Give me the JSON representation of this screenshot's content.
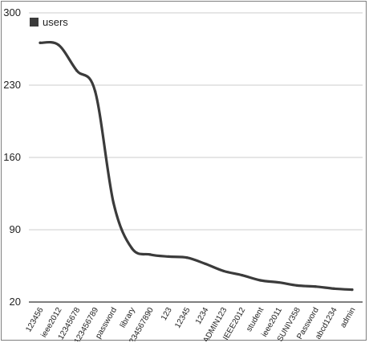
{
  "chart_data": {
    "type": "line",
    "title": "",
    "xlabel": "",
    "ylabel": "",
    "ylim": [
      20,
      300
    ],
    "yticks": [
      20,
      90,
      160,
      230,
      300
    ],
    "grid": "horizontal",
    "legend_position": "top-left",
    "categories": [
      "123456",
      "ieee2012",
      "12345678",
      "123456789",
      "password",
      "library",
      "1234567890",
      "123",
      "12345",
      "1234",
      "ADMIN123",
      "IEEE2012",
      "student",
      "ieee2011",
      "SUNIV358",
      "Password",
      "abcd1234",
      "admin"
    ],
    "series": [
      {
        "name": "users",
        "color": "#3b3b3b",
        "values": [
          271,
          269,
          244,
          224,
          116,
          72,
          66,
          64,
          63,
          57,
          50,
          46,
          41,
          39,
          36,
          35,
          33,
          32
        ]
      }
    ]
  }
}
